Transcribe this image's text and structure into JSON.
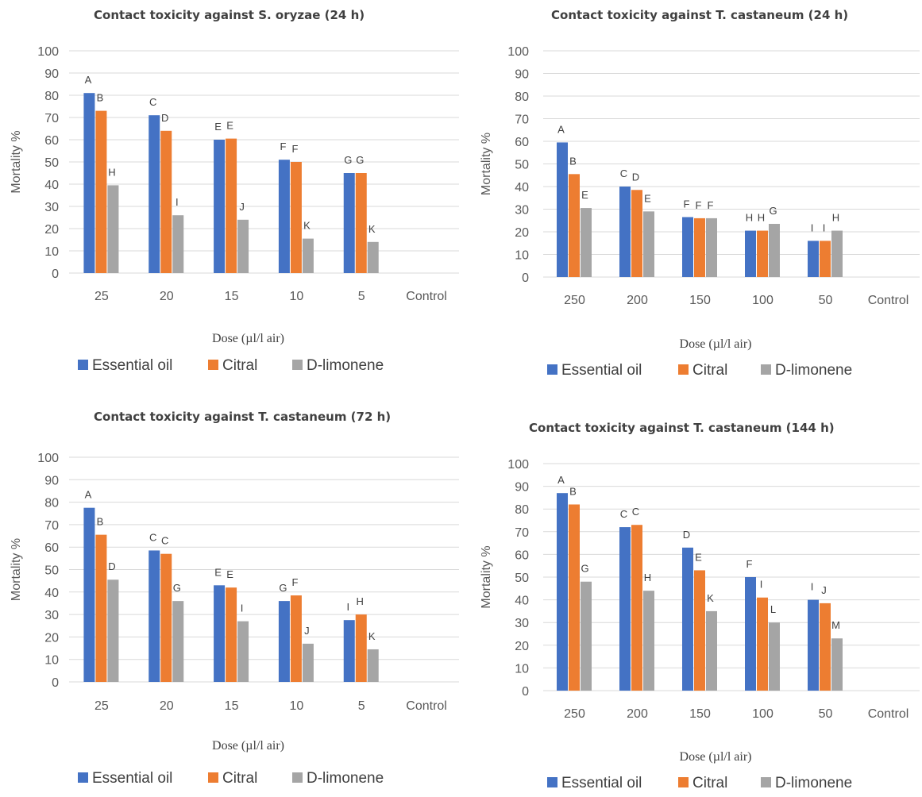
{
  "colors": {
    "series": [
      "#4472C4",
      "#ED7D31",
      "#A5A5A5"
    ],
    "grid": "#D9D9D9",
    "text": "#595959"
  },
  "chart_data": [
    {
      "type": "bar",
      "title": "Contact toxicity against S. oryzae (24 h)",
      "xlabel": "Dose (µl/l air)",
      "ylabel": "Mortality %",
      "ylim": [
        0,
        100
      ],
      "yticks": [
        0,
        10,
        20,
        30,
        40,
        50,
        60,
        70,
        80,
        90,
        100
      ],
      "grid": true,
      "legend": "bottom",
      "categories": [
        "25",
        "20",
        "15",
        "10",
        "5",
        "Control"
      ],
      "series": [
        {
          "name": "Essential oil",
          "values": [
            81,
            71,
            60,
            51,
            45,
            0
          ],
          "letters": [
            "A",
            "C",
            "E",
            "F",
            "G",
            ""
          ]
        },
        {
          "name": "Citral",
          "values": [
            73,
            64,
            60.5,
            50,
            45,
            0
          ],
          "letters": [
            "B",
            "D",
            "E",
            "F",
            "G",
            ""
          ]
        },
        {
          "name": "D-limonene",
          "values": [
            39.5,
            26,
            24,
            15.5,
            14,
            0
          ],
          "letters": [
            "H",
            "I",
            "J",
            "K",
            "K",
            ""
          ]
        }
      ]
    },
    {
      "type": "bar",
      "title": "Contact toxicity against T. castaneum (24 h)",
      "xlabel": "Dose (µl/l air)",
      "ylabel": "Mortality %",
      "ylim": [
        0,
        100
      ],
      "yticks": [
        0,
        10,
        20,
        30,
        40,
        50,
        60,
        70,
        80,
        90,
        100
      ],
      "grid": true,
      "legend": "bottom",
      "categories": [
        "250",
        "200",
        "150",
        "100",
        "50",
        "Control"
      ],
      "series": [
        {
          "name": "Essential oil",
          "values": [
            59.5,
            40,
            26.5,
            20.5,
            16,
            0
          ],
          "letters": [
            "A",
            "C",
            "F",
            "H",
            "I",
            ""
          ]
        },
        {
          "name": "Citral",
          "values": [
            45.5,
            38.5,
            26,
            20.5,
            16,
            0
          ],
          "letters": [
            "B",
            "D",
            "F",
            "H",
            "I",
            ""
          ]
        },
        {
          "name": "D-limonene",
          "values": [
            30.5,
            29,
            26,
            23.5,
            20.5,
            0
          ],
          "letters": [
            "E",
            "E",
            "F",
            "G",
            "H",
            ""
          ]
        }
      ]
    },
    {
      "type": "bar",
      "title": "Contact toxicity against T. castaneum (72 h)",
      "xlabel": "Dose (µl/l air)",
      "ylabel": "Mortality %",
      "ylim": [
        0,
        100
      ],
      "yticks": [
        0,
        10,
        20,
        30,
        40,
        50,
        60,
        70,
        80,
        90,
        100
      ],
      "grid": true,
      "legend": "bottom",
      "categories": [
        "25",
        "20",
        "15",
        "10",
        "5",
        "Control"
      ],
      "series": [
        {
          "name": "Essential oil",
          "values": [
            77.5,
            58.5,
            43,
            36,
            27.5,
            0
          ],
          "letters": [
            "A",
            "C",
            "E",
            "G",
            "I",
            ""
          ]
        },
        {
          "name": "Citral",
          "values": [
            65.5,
            57,
            42,
            38.5,
            30,
            0
          ],
          "letters": [
            "B",
            "C",
            "E",
            "F",
            "H",
            ""
          ]
        },
        {
          "name": "D-limonene",
          "values": [
            45.5,
            36,
            27,
            17,
            14.5,
            0
          ],
          "letters": [
            "D",
            "G",
            "I",
            "J",
            "K",
            ""
          ]
        }
      ]
    },
    {
      "type": "bar",
      "title": "Contact toxicity against T. castaneum (144 h)",
      "xlabel": "Dose (µl/l air)",
      "ylabel": "Mortality %",
      "ylim": [
        0,
        100
      ],
      "yticks": [
        0,
        10,
        20,
        30,
        40,
        50,
        60,
        70,
        80,
        90,
        100
      ],
      "grid": true,
      "legend": "bottom",
      "categories": [
        "250",
        "200",
        "150",
        "100",
        "50",
        "Control"
      ],
      "series": [
        {
          "name": "Essential oil",
          "values": [
            87,
            72,
            63,
            50,
            40,
            0
          ],
          "letters": [
            "A",
            "C",
            "D",
            "F",
            "I",
            ""
          ]
        },
        {
          "name": "Citral",
          "values": [
            82,
            73,
            53,
            41,
            38.5,
            0
          ],
          "letters": [
            "B",
            "C",
            "E",
            "I",
            "J",
            ""
          ]
        },
        {
          "name": "D-limonene",
          "values": [
            48,
            44,
            35,
            30,
            23,
            0
          ],
          "letters": [
            "G",
            "H",
            "K",
            "L",
            "M",
            ""
          ]
        }
      ]
    }
  ]
}
